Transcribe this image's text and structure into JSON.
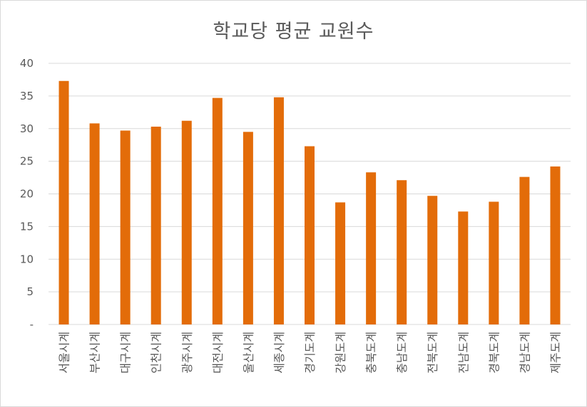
{
  "chart_data": {
    "type": "bar",
    "title": "학교당  평균 교원수",
    "categories": [
      "서울시계",
      "부산시계",
      "대구시계",
      "인천시계",
      "광주시계",
      "대전시계",
      "울산시계",
      "세종시계",
      "경기도계",
      "강원도계",
      "충북도계",
      "충남도계",
      "전북도계",
      "전남도계",
      "경북도계",
      "경남도계",
      "제주도계"
    ],
    "values": [
      37.3,
      30.8,
      29.7,
      30.3,
      31.2,
      34.7,
      29.5,
      34.8,
      27.3,
      18.7,
      23.3,
      22.1,
      19.7,
      17.3,
      18.8,
      22.6,
      24.2
    ],
    "ylim": [
      0,
      40
    ],
    "yticks": [
      0,
      5,
      10,
      15,
      20,
      25,
      30,
      35,
      40
    ],
    "ytick_labels": [
      "-",
      "5",
      "10",
      "15",
      "20",
      "25",
      "30",
      "35",
      "40"
    ],
    "xlabel": "",
    "ylabel": "",
    "grid": true,
    "legend": "none",
    "bar_color": "#e36c09",
    "grid_color": "#d9d9d9"
  }
}
